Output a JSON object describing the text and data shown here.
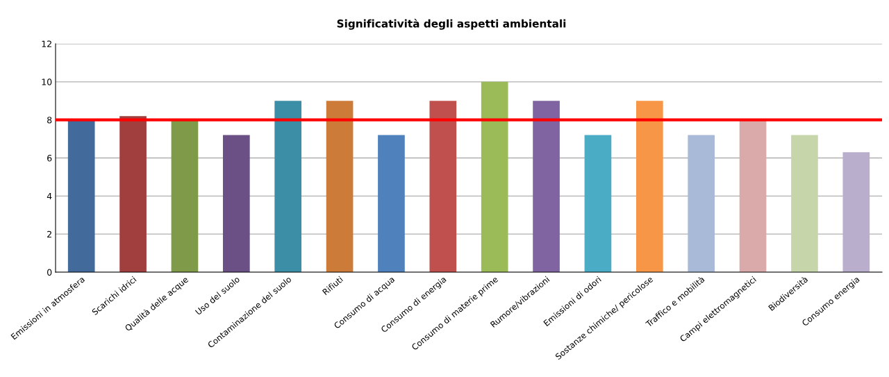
{
  "chart_data": {
    "type": "bar",
    "title": "Significatività degli aspetti ambientali",
    "categories": [
      "Emissioni in atmosfera",
      "Scarichi idrici",
      "Qualità delle acque",
      "Uso del suolo",
      "Contaminazione del suolo",
      "Rifiuti",
      "Consumo di acqua",
      "Consumo di energia",
      "Consumo di materie prime",
      "Rumore/vibrazioni",
      "Emissioni di odori",
      "Sostanze chimiche/ pericolose",
      "Traffico e mobilità",
      "Campi elettromagnetici",
      "Biodiversità",
      "Consumo energia"
    ],
    "values": [
      8,
      8.2,
      8,
      7.2,
      9,
      9,
      7.2,
      9,
      10,
      9,
      7.2,
      9,
      7.2,
      8,
      7.2,
      6.3
    ],
    "colors": [
      "#426a9a",
      "#a03f3e",
      "#7f9a48",
      "#6a5084",
      "#3b8ea5",
      "#cc7b38",
      "#4f81bd",
      "#c0504d",
      "#9bbb59",
      "#8064a2",
      "#4bacc6",
      "#f79646",
      "#a9bad8",
      "#d9aaa9",
      "#c6d6aa",
      "#b9aecb"
    ],
    "ylim": [
      0,
      12
    ],
    "yticks": [
      0,
      2,
      4,
      6,
      8,
      10,
      12
    ],
    "grid": "y",
    "ref_lines": [
      {
        "axis": "y",
        "value": 8,
        "color": "#ff0000"
      }
    ]
  }
}
